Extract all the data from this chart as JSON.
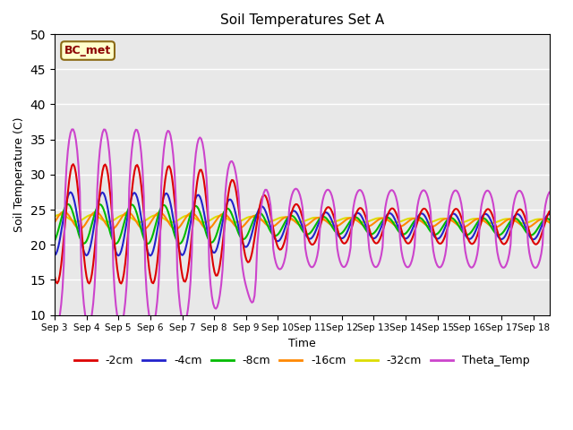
{
  "title": "Soil Temperatures Set A",
  "xlabel": "Time",
  "ylabel": "Soil Temperature (C)",
  "ylim": [
    10,
    50
  ],
  "yticks": [
    10,
    15,
    20,
    25,
    30,
    35,
    40,
    45,
    50
  ],
  "annotation": "BC_met",
  "bg_color": "#e8e8e8",
  "xlim_days": 15.5,
  "xtick_start": 3,
  "xtick_end": 18,
  "series": {
    "-2cm": {
      "color": "#dd0000",
      "lw": 1.5
    },
    "-4cm": {
      "color": "#2222cc",
      "lw": 1.5
    },
    "-8cm": {
      "color": "#00bb00",
      "lw": 1.5
    },
    "-16cm": {
      "color": "#ff8800",
      "lw": 1.5
    },
    "-32cm": {
      "color": "#dddd00",
      "lw": 1.5
    },
    "Theta_Temp": {
      "color": "#cc44cc",
      "lw": 1.5
    }
  }
}
